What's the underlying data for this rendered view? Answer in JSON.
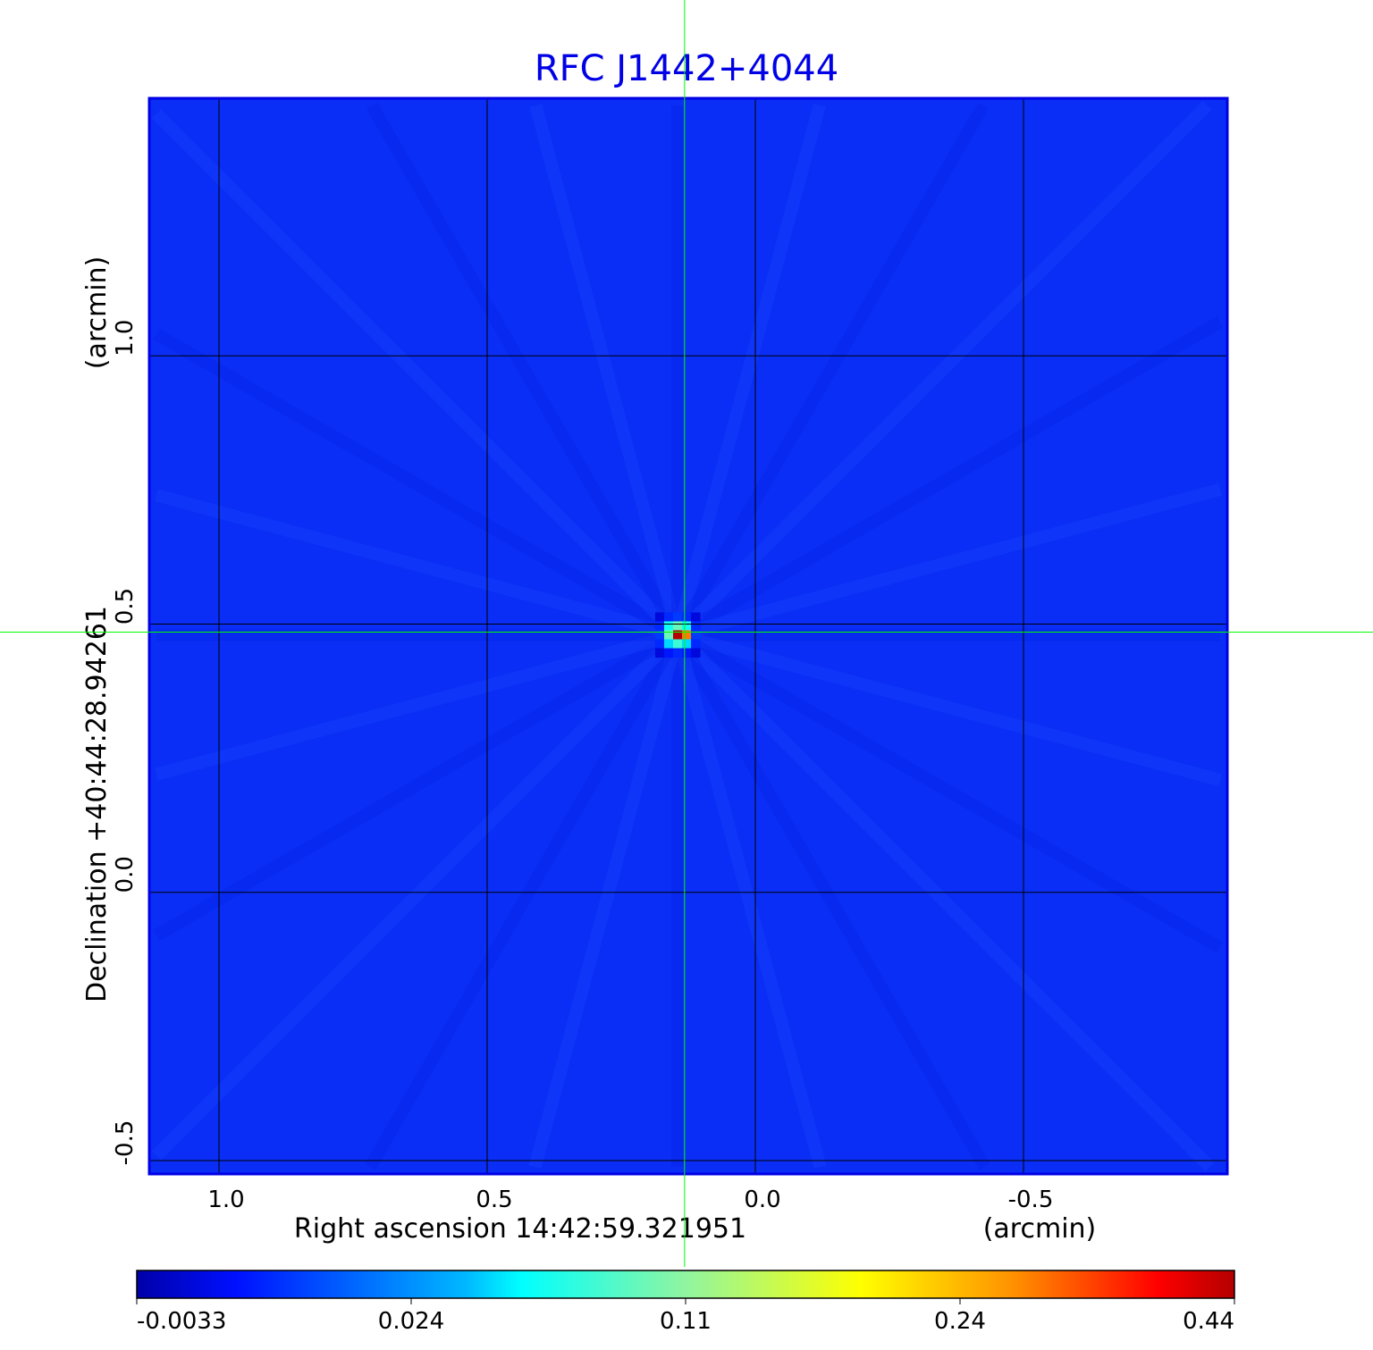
{
  "chart_data": {
    "type": "heatmap",
    "title": "RFC J1442+4044",
    "xlabel": "Right ascension  14:42:59.321951",
    "xunit": "(arcmin)",
    "ylabel": "Declination  +40:44:28.94261",
    "yunit": "(arcmin)",
    "x_ticks": [
      1.0,
      0.5,
      0.0,
      -0.5
    ],
    "x_tick_labels": [
      "1.0",
      "0.5",
      "0.0",
      "-0.5"
    ],
    "y_ticks": [
      1.0,
      0.5,
      0.0,
      -0.5
    ],
    "y_tick_labels": [
      "1.0",
      "0.5",
      "0.0",
      "-0.5"
    ],
    "xlim": [
      1.13,
      -0.88
    ],
    "ylim": [
      -0.525,
      1.48
    ],
    "grid": true,
    "colormap": "jet",
    "colorbar": {
      "ticks": [
        "-0.0033",
        "0.024",
        "0.11",
        "0.24",
        "0.44"
      ],
      "range": [
        -0.0033,
        0.44
      ]
    },
    "crosshair": {
      "x": 0.132,
      "y": 0.485,
      "color": "#00ff00"
    },
    "source": {
      "center": [
        0.145,
        0.48
      ],
      "pixel_size_arcmin": 0.0167,
      "values": [
        [
          0.02,
          0.05,
          0.06,
          0.05,
          0.02
        ],
        [
          0.05,
          0.16,
          0.2,
          0.16,
          0.05
        ],
        [
          0.06,
          0.2,
          0.44,
          0.36,
          0.06
        ],
        [
          0.05,
          0.14,
          0.18,
          0.14,
          0.05
        ],
        [
          0.02,
          0.04,
          0.05,
          0.04,
          0.02
        ]
      ]
    },
    "colors": {
      "title": "#0000e6",
      "background": "#0a2ef5",
      "frame": "#0000e6",
      "grid": "#000000"
    }
  }
}
